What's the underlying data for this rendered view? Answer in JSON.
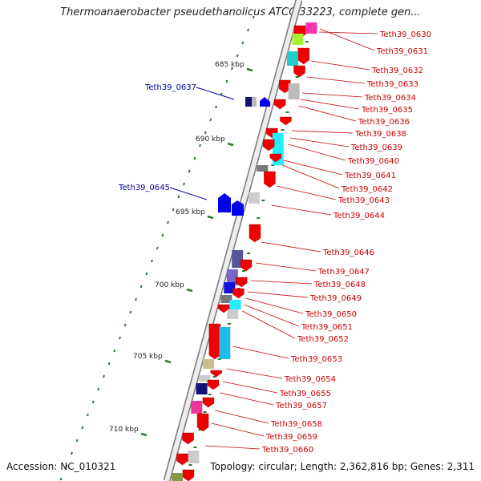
{
  "title": "Thermoanaerobacter pseudethanolicus ATCC 33223, complete gen...",
  "footer": {
    "accession": "Accession: NC_010321",
    "topology": "Topology: circular; Length: 2,362,816 bp; Genes: 2,311"
  },
  "kbp_labels": [
    "685 kbp",
    "690 kbp",
    "695 kbp",
    "700 kbp",
    "705 kbp",
    "710 kbp"
  ],
  "left_genes": [
    "Teth39_0637",
    "Teth39_0645"
  ],
  "right_genes": [
    "Teth39_0630",
    "Teth39_0631",
    "Teth39_0632",
    "Teth39_0633",
    "Teth39_0634",
    "Teth39_0635",
    "Teth39_0636",
    "Teth39_0638",
    "Teth39_0639",
    "Teth39_0640",
    "Teth39_0641",
    "Teth39_0642",
    "Teth39_0643",
    "Teth39_0644",
    "Teth39_0646",
    "Teth39_0647",
    "Teth39_0648",
    "Teth39_0649",
    "Teth39_0650",
    "Teth39_0651",
    "Teth39_0652",
    "Teth39_0653",
    "Teth39_0654",
    "Teth39_0655",
    "Teth39_0657",
    "Teth39_0658",
    "Teth39_0659",
    "Teth39_0660"
  ],
  "colors": {
    "right_label": "#cc0000",
    "left_label": "#0000aa",
    "backbone": "#999999",
    "tick": "#2a7a2a",
    "forward_gene": "#ee0000"
  }
}
